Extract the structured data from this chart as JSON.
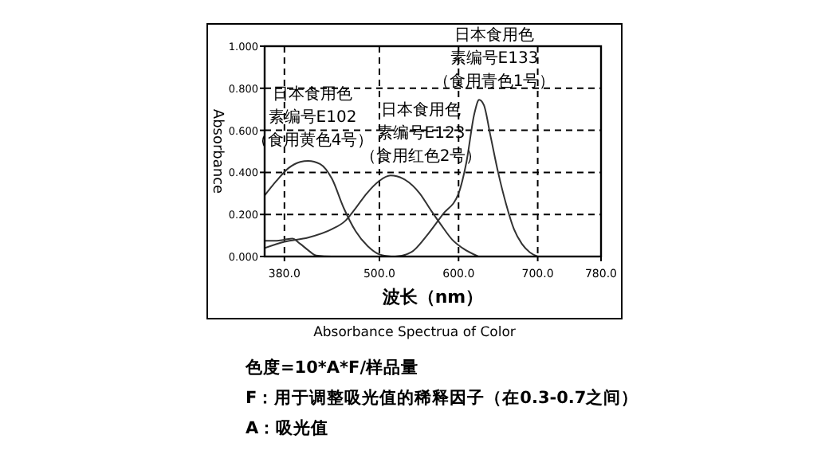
{
  "chart_data": {
    "type": "line",
    "title": "Absorbance Spectrua of Color",
    "xlabel": "波长（nm）",
    "ylabel": "Absorbance",
    "xlim": [
      355,
      780
    ],
    "xticks": [
      {
        "value": 380,
        "label": "380.0"
      },
      {
        "value": 500,
        "label": "500.0"
      },
      {
        "value": 600,
        "label": "600.0"
      },
      {
        "value": 700,
        "label": "700.0"
      },
      {
        "value": 780,
        "label": "780.0"
      }
    ],
    "ylim": [
      0,
      1
    ],
    "yticks": [
      {
        "value": 0,
        "label": "0.000"
      },
      {
        "value": 0.2,
        "label": "0.200"
      },
      {
        "value": 0.4,
        "label": "0.400"
      },
      {
        "value": 0.6,
        "label": "0.600"
      },
      {
        "value": 0.8,
        "label": "0.800"
      },
      {
        "value": 1,
        "label": "1.000"
      }
    ],
    "grid": true,
    "line_style": "solid",
    "series": [
      {
        "color": "#333333",
        "x": [
          355,
          370,
          385,
          400,
          410,
          425,
          440,
          455,
          470,
          485,
          500,
          515
        ],
        "values": [
          0.29,
          0.36,
          0.42,
          0.45,
          0.455,
          0.44,
          0.37,
          0.23,
          0.12,
          0.05,
          0.01,
          0
        ]
      },
      {
        "color": "#333333",
        "x": [
          355,
          380,
          410,
          440,
          457,
          470,
          484,
          500,
          514,
          530,
          551,
          565,
          578,
          592,
          605,
          625
        ],
        "values": [
          0.04,
          0.07,
          0.09,
          0.13,
          0.17,
          0.23,
          0.3,
          0.36,
          0.385,
          0.37,
          0.3,
          0.22,
          0.15,
          0.08,
          0.04,
          0
        ]
      },
      {
        "color": "#333333",
        "x": [
          355,
          370,
          380,
          390,
          400,
          410,
          420,
          440,
          520,
          540,
          560,
          580,
          600,
          610,
          620,
          626,
          632,
          640,
          650,
          660,
          670,
          680,
          690,
          700
        ],
        "values": [
          0.075,
          0.075,
          0.08,
          0.085,
          0.06,
          0.03,
          0.005,
          0,
          0,
          0.02,
          0.1,
          0.2,
          0.3,
          0.45,
          0.68,
          0.745,
          0.72,
          0.58,
          0.4,
          0.25,
          0.13,
          0.06,
          0.02,
          0
        ]
      }
    ],
    "annotations": [
      "日本食用色",
      "素编号E102",
      "（食用黄色4号）",
      "日本食用色",
      "素编号E123",
      "（食用红色2号）",
      "日本食用色",
      "素编号E133",
      "（食用青色1号）",
      "色度=10*A*F/样品量",
      "F：用于调整吸光值的稀释因子（在0.3-0.7之间）",
      "A：吸光值"
    ]
  }
}
